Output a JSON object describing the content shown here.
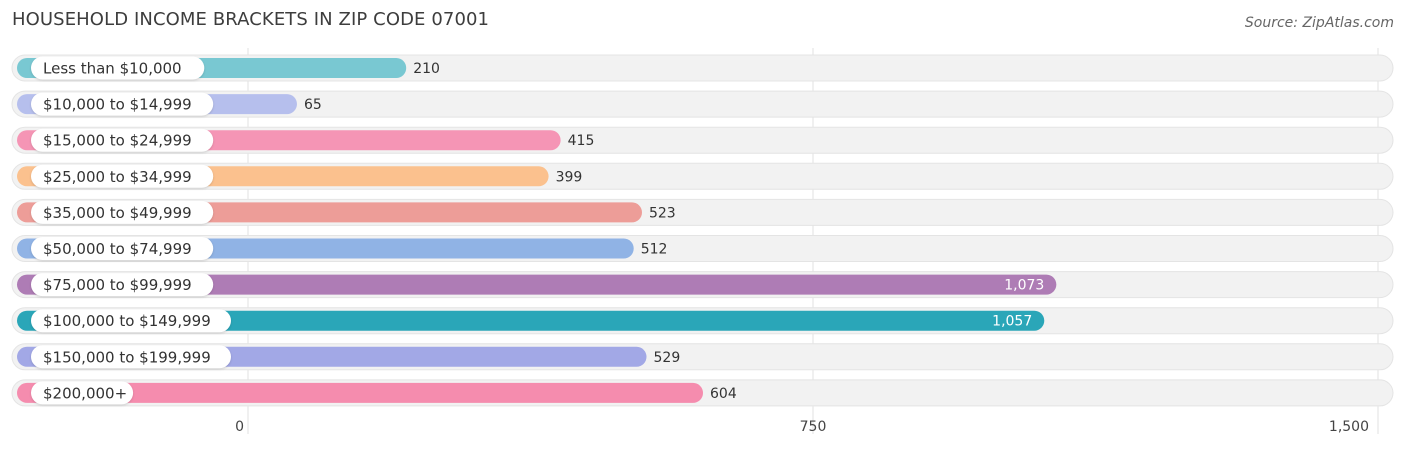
{
  "title": "HOUSEHOLD INCOME BRACKETS IN ZIP CODE 07001",
  "source": "Source: ZipAtlas.com",
  "chart_data": {
    "type": "bar",
    "orientation": "horizontal",
    "categories": [
      "Less than $10,000",
      "$10,000 to $14,999",
      "$15,000 to $24,999",
      "$25,000 to $34,999",
      "$35,000 to $49,999",
      "$50,000 to $74,999",
      "$75,000 to $99,999",
      "$100,000 to $149,999",
      "$150,000 to $199,999",
      "$200,000+"
    ],
    "values": [
      210,
      65,
      415,
      399,
      523,
      512,
      1073,
      1057,
      529,
      604
    ],
    "value_labels": [
      "210",
      "65",
      "415",
      "399",
      "523",
      "512",
      "1,073",
      "1,057",
      "529",
      "604"
    ],
    "colors": [
      "#79c8d2",
      "#b6bfed",
      "#f595b5",
      "#fbc18e",
      "#ed9d98",
      "#90b3e5",
      "#ae7cb5",
      "#2aa6b8",
      "#a2a8e6",
      "#f58cae"
    ],
    "xlim": [
      0,
      1500
    ],
    "xticks": [
      0,
      750,
      1500
    ],
    "xtick_labels": [
      "0",
      "750",
      "1,500"
    ],
    "grid": true,
    "legend": "none"
  }
}
